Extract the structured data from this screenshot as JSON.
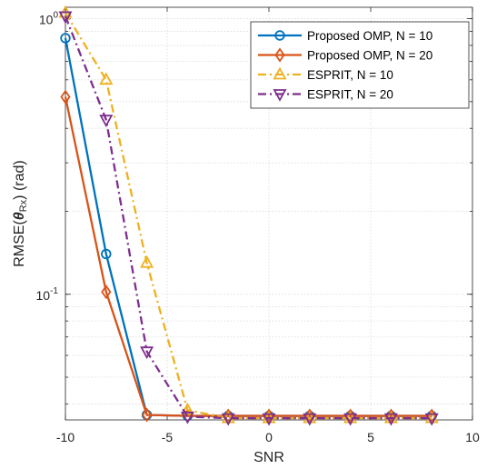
{
  "chart_data": {
    "type": "line",
    "xlabel": "SNR",
    "ylabel_main": "RMSE(",
    "ylabel_symbol": "θ",
    "ylabel_sub": "Rx",
    "ylabel_tail": ") (rad)",
    "xlim": [
      -10,
      10
    ],
    "ylim": [
      0.035,
      1.1
    ],
    "yscale": "log",
    "grid": true,
    "legend_position": "top-right",
    "x_ticks": [
      -10,
      -5,
      0,
      5,
      10
    ],
    "x_tick_labels": [
      "-10",
      "-5",
      "0",
      "5",
      "10"
    ],
    "y_ticks": [
      {
        "value": 0.1,
        "base": "10",
        "exp": "-1"
      },
      {
        "value": 1,
        "base": "10",
        "exp": "0"
      }
    ],
    "x": [
      -10,
      -8,
      -6,
      -4,
      -2,
      0,
      2,
      4,
      6,
      8
    ],
    "series": [
      {
        "name": "Proposed OMP, N = 10",
        "color": "#0072BD",
        "dash": "solid",
        "marker": "circle",
        "values": [
          0.85,
          0.14,
          0.0365,
          0.0362,
          0.0362,
          0.0362,
          0.0362,
          0.0362,
          0.0362,
          0.0362
        ]
      },
      {
        "name": "Proposed OMP, N = 20",
        "color": "#D95319",
        "dash": "solid",
        "marker": "diamond",
        "values": [
          0.52,
          0.102,
          0.0365,
          0.0362,
          0.0362,
          0.0362,
          0.0362,
          0.0362,
          0.0362,
          0.0362
        ]
      },
      {
        "name": "ESPRIT, N = 10",
        "color": "#EDB120",
        "dash": "dashdot",
        "marker": "triangle-up",
        "values": [
          1.05,
          0.6,
          0.13,
          0.038,
          0.0355,
          0.0355,
          0.0355,
          0.0355,
          0.0355,
          0.0355
        ]
      },
      {
        "name": "ESPRIT, N = 20",
        "color": "#7E2F8E",
        "dash": "dashdot",
        "marker": "triangle-down",
        "values": [
          1.02,
          0.43,
          0.062,
          0.036,
          0.0355,
          0.0355,
          0.0355,
          0.0355,
          0.0355,
          0.0355
        ]
      }
    ]
  }
}
